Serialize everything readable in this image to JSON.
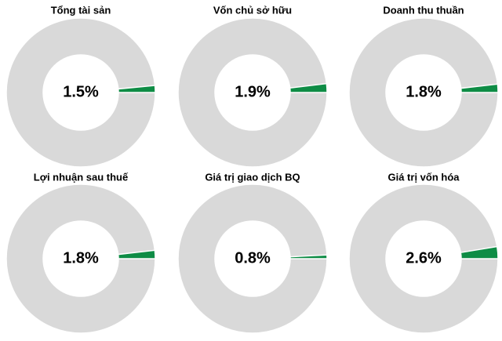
{
  "chart_data": [
    {
      "type": "donut",
      "title": "Tổng tài sản",
      "values": [
        1.5
      ],
      "value_labels": [
        "1.5%"
      ],
      "color": "#0e8c45"
    },
    {
      "type": "donut",
      "title": "Vốn chủ sở hữu",
      "values": [
        1.9
      ],
      "value_labels": [
        "1.9%"
      ],
      "color": "#0e8c45"
    },
    {
      "type": "donut",
      "title": "Doanh thu thuần",
      "values": [
        1.8
      ],
      "value_labels": [
        "1.8%"
      ],
      "color": "#0e8c45"
    },
    {
      "type": "donut",
      "title": "Lợi nhuận sau thuế",
      "values": [
        1.8
      ],
      "value_labels": [
        "1.8%"
      ],
      "color": "#0e8c45"
    },
    {
      "type": "donut",
      "title": "Giá trị giao dịch BQ",
      "values": [
        0.8
      ],
      "value_labels": [
        "0.8%"
      ],
      "color": "#0e8c45"
    },
    {
      "type": "donut",
      "title": "Giá trị vốn hóa",
      "values": [
        2.6
      ],
      "value_labels": [
        "2.6%"
      ],
      "color": "#0e8c45"
    }
  ]
}
